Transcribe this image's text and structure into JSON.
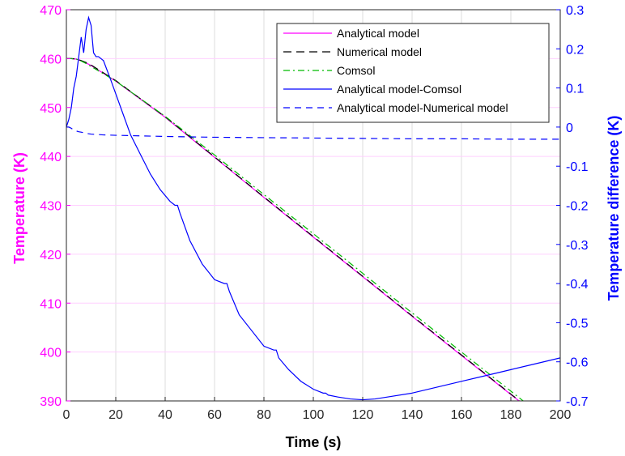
{
  "chart_data": {
    "type": "line",
    "xlabel": "Time (s)",
    "ylabel_left": "Temperature (K)",
    "ylabel_right": "Temperature difference (K)",
    "xlim": [
      0,
      200
    ],
    "ylim_left": [
      390,
      470
    ],
    "ylim_right": [
      -0.7,
      0.3
    ],
    "x_ticks": [
      "0",
      "20",
      "40",
      "60",
      "80",
      "100",
      "120",
      "140",
      "160",
      "180",
      "200"
    ],
    "y_ticks_left": [
      "390",
      "400",
      "410",
      "420",
      "430",
      "440",
      "450",
      "460",
      "470"
    ],
    "y_ticks_right": [
      "-0.7",
      "-0.6",
      "-0.5",
      "-0.4",
      "-0.3",
      "-0.2",
      "-0.1",
      "0",
      "0.1",
      "0.2",
      "0.3"
    ],
    "grid": true,
    "legend_position": "top-right",
    "colors": {
      "left_axis": "#ff00ff",
      "right_axis": "#0000ff",
      "grid": "#dddddd",
      "left_grid": "#ffd0ff"
    },
    "series": [
      {
        "name": "Analytical model",
        "axis": "left",
        "color": "#ff00ff",
        "dash": "solid",
        "x": [
          0,
          2,
          4,
          6,
          8,
          10,
          20,
          40,
          60,
          80,
          100,
          120,
          140,
          160,
          180,
          200
        ],
        "y": [
          460.0,
          460.0,
          459.9,
          459.6,
          459.1,
          458.6,
          455.4,
          448.0,
          439.8,
          431.6,
          423.5,
          415.4,
          407.3,
          399.3,
          391.3,
          383.4
        ]
      },
      {
        "name": "Numerical model",
        "axis": "left",
        "color": "#000000",
        "dash": "long",
        "x": [
          0,
          2,
          4,
          6,
          8,
          10,
          20,
          40,
          60,
          80,
          100,
          120,
          140,
          160,
          180,
          200
        ],
        "y": [
          460.0,
          460.0,
          459.9,
          459.6,
          459.2,
          458.7,
          455.5,
          448.1,
          439.9,
          431.7,
          423.6,
          415.5,
          407.4,
          399.4,
          391.4,
          383.5
        ]
      },
      {
        "name": "Comsol",
        "axis": "left",
        "color": "#00bb00",
        "dash": "dashdot",
        "x": [
          0,
          2,
          4,
          6,
          8,
          10,
          20,
          40,
          60,
          80,
          100,
          120,
          140,
          160,
          180,
          200
        ],
        "y": [
          460.0,
          460.0,
          459.9,
          459.5,
          459.0,
          458.4,
          455.4,
          448.2,
          440.3,
          432.2,
          424.2,
          416.1,
          408.0,
          400.0,
          392.0,
          384.0
        ]
      },
      {
        "name": "Analytical model-Comsol",
        "axis": "right",
        "color": "#0000ff",
        "dash": "solid",
        "x": [
          0,
          1,
          2,
          3,
          4,
          5,
          6,
          7,
          8,
          9,
          10,
          11,
          12,
          13,
          15,
          18,
          22,
          26,
          30,
          34,
          38,
          42,
          44,
          45,
          46,
          50,
          55,
          60,
          64,
          65,
          66,
          70,
          75,
          80,
          84,
          85,
          86,
          90,
          95,
          100,
          104,
          105,
          106,
          110,
          115,
          120,
          125,
          130,
          140,
          150,
          160,
          170,
          180,
          190,
          200
        ],
        "y": [
          0.0,
          0.02,
          0.05,
          0.1,
          0.13,
          0.18,
          0.23,
          0.19,
          0.25,
          0.28,
          0.26,
          0.19,
          0.18,
          0.18,
          0.17,
          0.12,
          0.05,
          -0.02,
          -0.07,
          -0.12,
          -0.16,
          -0.19,
          -0.2,
          -0.2,
          -0.22,
          -0.29,
          -0.35,
          -0.39,
          -0.4,
          -0.4,
          -0.42,
          -0.48,
          -0.52,
          -0.56,
          -0.57,
          -0.57,
          -0.59,
          -0.62,
          -0.65,
          -0.67,
          -0.68,
          -0.68,
          -0.685,
          -0.69,
          -0.695,
          -0.697,
          -0.695,
          -0.69,
          -0.68,
          -0.665,
          -0.65,
          -0.635,
          -0.62,
          -0.605,
          -0.59
        ]
      },
      {
        "name": "Analytical model-Numerical model",
        "axis": "right",
        "color": "#0000ff",
        "dash": "dashed",
        "x": [
          0,
          1,
          2,
          3,
          4,
          5,
          6,
          8,
          10,
          15,
          20,
          40,
          60,
          80,
          100,
          120,
          140,
          160,
          180,
          200
        ],
        "y": [
          0.0,
          0.0,
          -0.003,
          -0.008,
          -0.01,
          -0.012,
          -0.013,
          -0.016,
          -0.018,
          -0.02,
          -0.021,
          -0.024,
          -0.026,
          -0.027,
          -0.028,
          -0.029,
          -0.03,
          -0.03,
          -0.031,
          -0.031
        ]
      }
    ]
  }
}
